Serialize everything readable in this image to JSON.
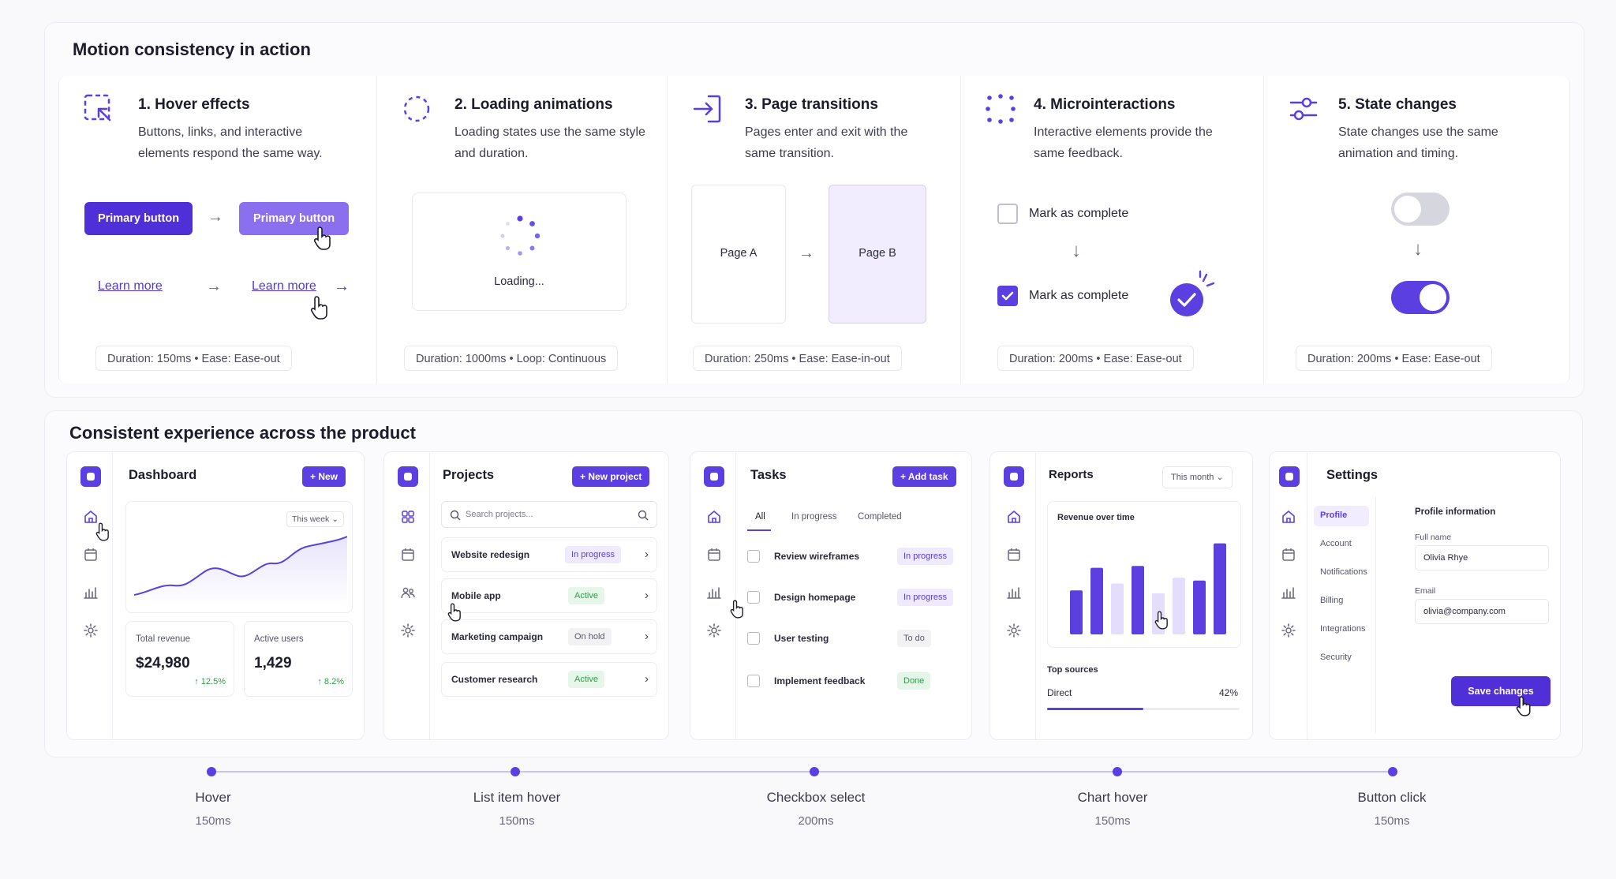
{
  "motion": {
    "title": "Motion consistency in action",
    "cards": [
      {
        "title": "1. Hover effects",
        "desc": "Buttons, links, and interactive elements respond the same way.",
        "icon": "hover-cursor-icon",
        "duration": "Duration: 150ms  •  Ease: Ease-out"
      },
      {
        "title": "2. Loading animations",
        "desc": "Loading states use the same style and duration.",
        "icon": "loading-spinner-icon",
        "duration": "Duration: 1000ms  •  Loop: Continuous"
      },
      {
        "title": "3. Page transitions",
        "desc": "Pages enter and exit with the same transition.",
        "icon": "page-enter-icon",
        "duration": "Duration: 250ms  •  Ease: Ease-in-out"
      },
      {
        "title": "4. Microinteractions",
        "desc": "Interactive elements provide the same feedback.",
        "icon": "dots-grid-icon",
        "duration": "Duration: 200ms  •  Ease: Ease-out"
      },
      {
        "title": "5. State changes",
        "desc": "State changes use the same animation and timing.",
        "icon": "sliders-icon",
        "duration": "Duration: 200ms  •  Ease: Ease-out"
      }
    ],
    "hover": {
      "primary_label": "Primary button",
      "primary_hover_label": "Primary button",
      "link_label": "Learn more",
      "link_hover_label": "Learn more"
    },
    "loading": {
      "label": "Loading..."
    },
    "pages": {
      "a": "Page A",
      "b": "Page B"
    },
    "micro": {
      "unchecked_label": "Mark as complete",
      "checked_label": "Mark as complete"
    },
    "toggle": {
      "off_state": "off",
      "on_state": "on"
    }
  },
  "product": {
    "title": "Consistent experience across the product",
    "dashboard": {
      "title": "Dashboard",
      "new_label": "+ New",
      "range": "This week ⌄",
      "revenue_label": "Total revenue",
      "revenue_value": "$24,980",
      "revenue_delta": "↑ 12.5%",
      "users_label": "Active users",
      "users_value": "1,429",
      "users_delta": "↑ 8.2%"
    },
    "projects": {
      "title": "Projects",
      "new_label": "+ New project",
      "search_placeholder": "Search projects...",
      "rows": [
        {
          "name": "Website redesign",
          "status": "In progress"
        },
        {
          "name": "Mobile app",
          "status": "Active"
        },
        {
          "name": "Marketing campaign",
          "status": "On hold"
        },
        {
          "name": "Customer research",
          "status": "Active"
        }
      ]
    },
    "tasks": {
      "title": "Tasks",
      "add_label": "+ Add task",
      "tabs": [
        "All",
        "In progress",
        "Completed"
      ],
      "rows": [
        {
          "name": "Review wireframes",
          "status": "In progress"
        },
        {
          "name": "Design homepage",
          "status": "In progress"
        },
        {
          "name": "User testing",
          "status": "To do"
        },
        {
          "name": "Implement feedback",
          "status": "Done"
        }
      ]
    },
    "reports": {
      "title": "Reports",
      "range": "This month ⌄",
      "chart_title": "Revenue over time",
      "bar_values": [
        0.45,
        0.68,
        0.52,
        0.7,
        0.42,
        0.58,
        0.55,
        0.93
      ],
      "bar_emphasis": [
        true,
        true,
        false,
        true,
        false,
        false,
        true,
        true
      ],
      "top_sources_label": "Top sources",
      "source_name": "Direct",
      "source_value": "42%",
      "source_fraction": 0.42
    },
    "settings": {
      "title": "Settings",
      "menu": [
        "Profile",
        "Account",
        "Notifications",
        "Billing",
        "Integrations",
        "Security"
      ],
      "section_title": "Profile information",
      "full_name_label": "Full name",
      "full_name_value": "Olivia Rhye",
      "email_label": "Email",
      "email_value": "olivia@company.com",
      "save_label": "Save changes"
    }
  },
  "timeline": [
    {
      "label": "Hover",
      "ms": "150ms"
    },
    {
      "label": "List item hover",
      "ms": "150ms"
    },
    {
      "label": "Checkbox select",
      "ms": "200ms"
    },
    {
      "label": "Chart hover",
      "ms": "150ms"
    },
    {
      "label": "Button click",
      "ms": "150ms"
    }
  ],
  "colors": {
    "accent": "#5b3fe0",
    "accent_light": "#8b73f0",
    "success": "#2f9e48"
  }
}
